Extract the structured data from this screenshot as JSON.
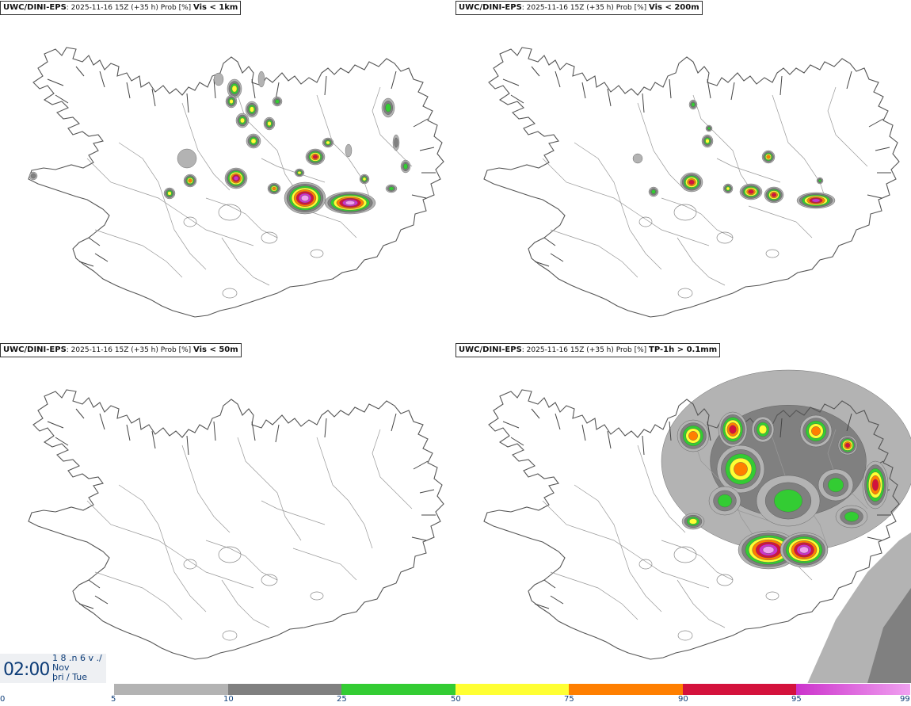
{
  "panels": [
    {
      "model": "UWC/DINI-EPS",
      "meta": ": 2025-11-16 15Z (+35 h) Prob [%] ",
      "variable": "Vis < 1km"
    },
    {
      "model": "UWC/DINI-EPS",
      "meta": ": 2025-11-16 15Z (+35 h) Prob [%] ",
      "variable": "Vis < 200m"
    },
    {
      "model": "UWC/DINI-EPS",
      "meta": ": 2025-11-16 15Z (+35 h) Prob [%] ",
      "variable": "Vis < 50m"
    },
    {
      "model": "UWC/DINI-EPS",
      "meta": ": 2025-11-16 15Z (+35 h) Prob [%] ",
      "variable": "TP-1h > 0.1mm"
    }
  ],
  "valid_time": {
    "time": "02:00",
    "line1": "1 8 .n 6 v ./",
    "line2": "Nov",
    "line3": "þri / Tue"
  },
  "colorbar": {
    "segments": [
      {
        "color": "#b3b3b3"
      },
      {
        "color": "#808080"
      },
      {
        "color": "#33cc33"
      },
      {
        "color": "#ffff33"
      },
      {
        "color": "#ff7f00"
      },
      {
        "color": "#d4123c"
      },
      {
        "color": "#cc33cc"
      },
      {
        "color": "#f0a0f0"
      }
    ],
    "ticks": [
      "0",
      "5",
      "10",
      "25",
      "50",
      "75",
      "90",
      "95",
      "99"
    ]
  }
}
